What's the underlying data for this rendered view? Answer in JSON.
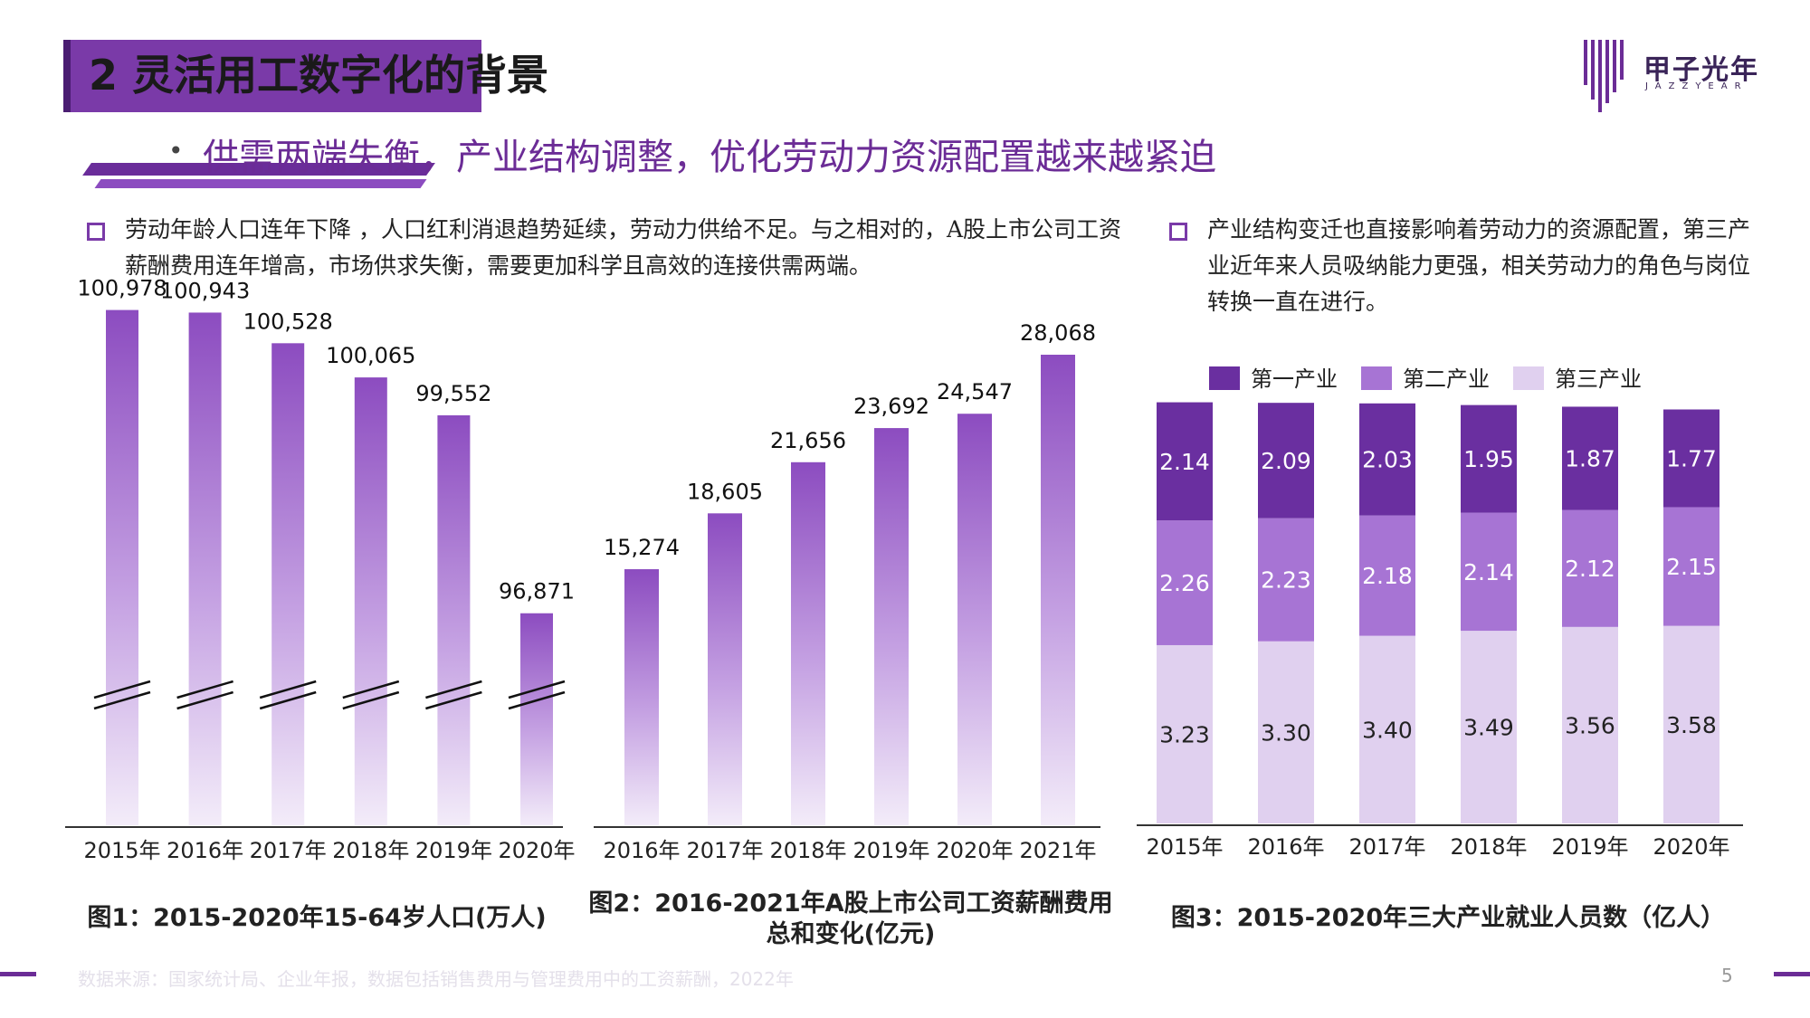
{
  "header": {
    "title": "2 灵活用工数字化的背景",
    "logo_name": "甲子光年",
    "logo_sub": "JAZZYEAR"
  },
  "subtitle": {
    "bullet": "•",
    "text": "供需两端失衡，产业结构调整，优化劳动力资源配置越来越紧迫"
  },
  "desc_left": "劳动年龄人口连年下降 ，人口红利消退趋势延续，劳动力供给不足。与之相对的，A股上市公司工资薪酬费用连年增高，市场供求失衡，需要更加科学且高效的连接供需两端。",
  "desc_right": "产业结构变迁也直接影响着劳动力的资源配置，第三产业近年来人员吸纳能力更强，相关劳动力的角色与岗位转换一直在进行。",
  "colors": {
    "primary": "#6b2c96",
    "bar_top": "#8c4cc0",
    "tier1": "#6a2fa0",
    "tier2": "#a774d4",
    "tier3": "#e0d0ef"
  },
  "chart_data": [
    {
      "type": "bar",
      "categories": [
        "2015年",
        "2016年",
        "2017年",
        "2018年",
        "2019年",
        "2020年"
      ],
      "values": [
        100978,
        100943,
        100528,
        100065,
        99552,
        96871
      ],
      "value_labels": [
        "100,978",
        "100,943",
        "100,528",
        "100,065",
        "99,552",
        "96,871"
      ],
      "title": "图1：2015-2020年15-64岁人口(万人)",
      "axis_break": true,
      "ylim": [
        94000,
        101500
      ]
    },
    {
      "type": "bar",
      "categories": [
        "2016年",
        "2017年",
        "2018年",
        "2019年",
        "2020年",
        "2021年"
      ],
      "values": [
        15274,
        18605,
        21656,
        23692,
        24547,
        28068
      ],
      "value_labels": [
        "15,274",
        "18,605",
        "21,656",
        "23,692",
        "24,547",
        "28,068"
      ],
      "title": "图2：2016-2021年A股上市公司工资薪酬费用总和变化(亿元)",
      "ylim": [
        0,
        28068
      ]
    },
    {
      "type": "bar",
      "stacked": true,
      "categories": [
        "2015年",
        "2016年",
        "2017年",
        "2018年",
        "2019年",
        "2020年"
      ],
      "series": [
        {
          "name": "第一产业",
          "values": [
            2.14,
            2.09,
            2.03,
            1.95,
            1.87,
            1.77
          ],
          "labels": [
            "2.14",
            "2.09",
            "2.03",
            "1.95",
            "1.87",
            "1.77"
          ]
        },
        {
          "name": "第二产业",
          "values": [
            2.26,
            2.23,
            2.18,
            2.14,
            2.12,
            2.15
          ],
          "labels": [
            "2.26",
            "2.23",
            "2.18",
            "2.14",
            "2.12",
            "2.15"
          ]
        },
        {
          "name": "第三产业",
          "values": [
            3.23,
            3.3,
            3.4,
            3.49,
            3.56,
            3.58
          ],
          "labels": [
            "3.23",
            "3.30",
            "3.40",
            "3.49",
            "3.56",
            "3.58"
          ]
        }
      ],
      "title": "图3：2015-2020年三大产业就业人员数（亿人）",
      "legend_position": "top"
    }
  ],
  "footer": {
    "source": "数据来源：国家统计局、企业年报，数据包括销售费用与管理费用中的工资薪酬，2022年",
    "page": "5"
  }
}
